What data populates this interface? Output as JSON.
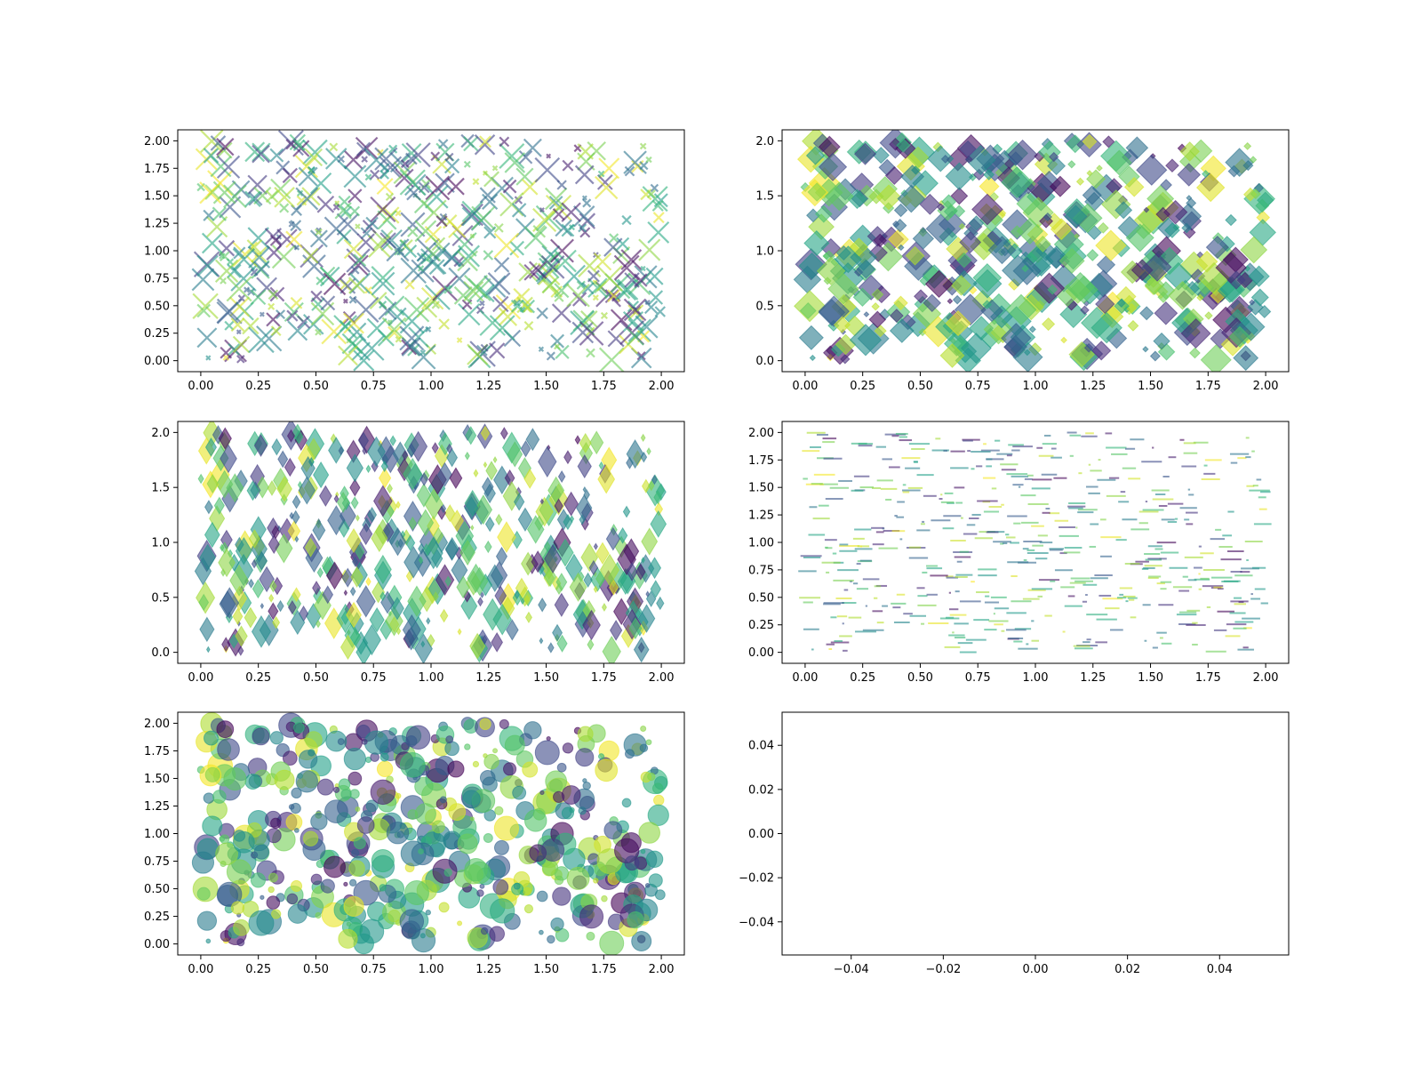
{
  "chart_data": [
    {
      "type": "scatter",
      "marker": "x",
      "n_points": 500,
      "xlim": [
        -0.1,
        2.1
      ],
      "ylim": [
        -0.1,
        2.1
      ],
      "xticks": [
        "0.00",
        "0.25",
        "0.50",
        "0.75",
        "1.00",
        "1.25",
        "1.50",
        "1.75",
        "2.00"
      ],
      "yticks": [
        "0.00",
        "0.25",
        "0.50",
        "0.75",
        "1.00",
        "1.25",
        "1.50",
        "1.75",
        "2.00"
      ],
      "alpha": 0.6,
      "colormap": "viridis",
      "grid": false
    },
    {
      "type": "scatter",
      "marker": "diamond",
      "n_points": 500,
      "xlim": [
        -0.1,
        2.1
      ],
      "ylim": [
        -0.1,
        2.1
      ],
      "xticks": [
        "0.00",
        "0.25",
        "0.50",
        "0.75",
        "1.00",
        "1.25",
        "1.50",
        "1.75",
        "2.00"
      ],
      "yticks": [
        "0.0",
        "0.5",
        "1.0",
        "1.5",
        "2.0"
      ],
      "alpha": 0.6,
      "colormap": "viridis",
      "grid": false
    },
    {
      "type": "scatter",
      "marker": "thin-diamond",
      "n_points": 500,
      "xlim": [
        -0.1,
        2.1
      ],
      "ylim": [
        -0.1,
        2.1
      ],
      "xticks": [
        "0.00",
        "0.25",
        "0.50",
        "0.75",
        "1.00",
        "1.25",
        "1.50",
        "1.75",
        "2.00"
      ],
      "yticks": [
        "0.0",
        "0.5",
        "1.0",
        "1.5",
        "2.0"
      ],
      "alpha": 0.6,
      "colormap": "viridis",
      "grid": false
    },
    {
      "type": "scatter",
      "marker": "hline",
      "n_points": 500,
      "xlim": [
        -0.1,
        2.1
      ],
      "ylim": [
        -0.1,
        2.1
      ],
      "xticks": [
        "0.00",
        "0.25",
        "0.50",
        "0.75",
        "1.00",
        "1.25",
        "1.50",
        "1.75",
        "2.00"
      ],
      "yticks": [
        "0.00",
        "0.25",
        "0.50",
        "0.75",
        "1.00",
        "1.25",
        "1.50",
        "1.75",
        "2.00"
      ],
      "alpha": 0.6,
      "colormap": "viridis",
      "grid": false
    },
    {
      "type": "scatter",
      "marker": "circle",
      "n_points": 500,
      "xlim": [
        -0.1,
        2.1
      ],
      "ylim": [
        -0.1,
        2.1
      ],
      "xticks": [
        "0.00",
        "0.25",
        "0.50",
        "0.75",
        "1.00",
        "1.25",
        "1.50",
        "1.75",
        "2.00"
      ],
      "yticks": [
        "0.00",
        "0.25",
        "0.50",
        "0.75",
        "1.00",
        "1.25",
        "1.50",
        "1.75",
        "2.00"
      ],
      "alpha": 0.6,
      "colormap": "viridis",
      "grid": false
    },
    {
      "type": "scatter",
      "marker": "none",
      "n_points": 0,
      "xlim": [
        -0.055,
        0.055
      ],
      "ylim": [
        -0.055,
        0.055
      ],
      "xticks": [
        "−0.04",
        "−0.02",
        "0.00",
        "0.02",
        "0.04"
      ],
      "yticks": [
        "−0.04",
        "−0.02",
        "0.00",
        "0.02",
        "0.04"
      ],
      "grid": false
    }
  ]
}
